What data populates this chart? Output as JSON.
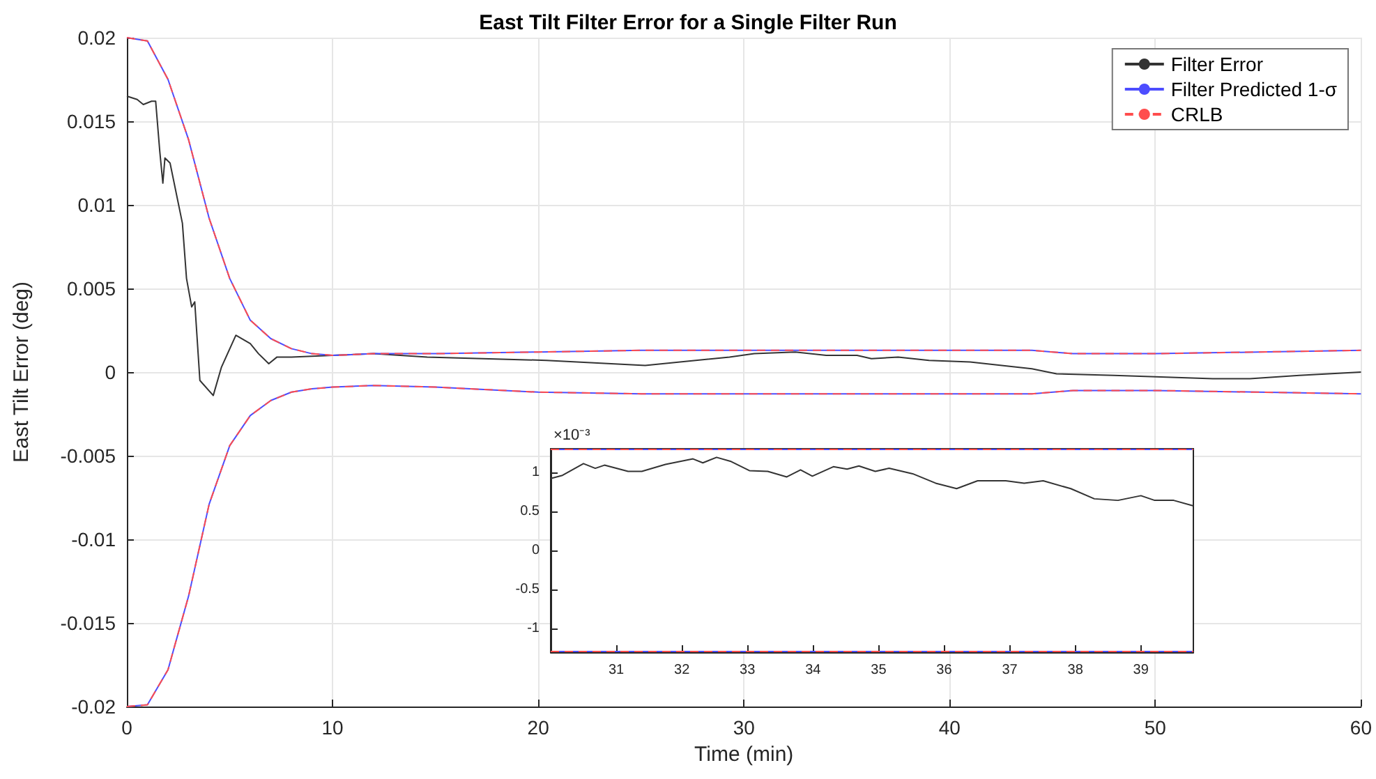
{
  "chart_data": [
    {
      "type": "line",
      "title": "East Tilt Filter Error for a Single Filter Run",
      "xlabel": "Time (min)",
      "ylabel": "East Tilt Error (deg)",
      "xlim": [
        0,
        60
      ],
      "xticks": [
        0,
        10,
        20,
        30,
        40,
        50,
        60
      ],
      "ylim": [
        -0.02,
        0.02
      ],
      "yticks": [
        -0.02,
        -0.015,
        -0.01,
        -0.005,
        0,
        0.005,
        0.01,
        0.015,
        0.02
      ],
      "grid": true,
      "legend": "top right",
      "marker": "none",
      "series": [
        {
          "name": "Filter Error",
          "color": "#333333",
          "line_style": "solid",
          "x": [
            0,
            0.5,
            0.8,
            1.2,
            1.4,
            1.6,
            1.75,
            1.85,
            2.1,
            2.7,
            2.9,
            3.15,
            3.3,
            3.55,
            4.2,
            4.6,
            5.3,
            6.0,
            6.4,
            6.9,
            7.3,
            8,
            10,
            12,
            14.6,
            20.4,
            25.2,
            29.3,
            30.5,
            32.5,
            34,
            35.5,
            36.2,
            37.5,
            39,
            41,
            44,
            45.2,
            48,
            52.8,
            54.6,
            57,
            60
          ],
          "values": [
            0.0165,
            0.0163,
            0.016,
            0.0162,
            0.0162,
            0.0132,
            0.0113,
            0.0128,
            0.0125,
            0.0089,
            0.0056,
            0.0039,
            0.0042,
            -0.0005,
            -0.0014,
            0.0003,
            0.0022,
            0.0017,
            0.0011,
            0.0005,
            0.0009,
            0.0009,
            0.001,
            0.0011,
            0.0009,
            0.0007,
            0.0004,
            0.0009,
            0.0011,
            0.0012,
            0.001,
            0.001,
            0.0008,
            0.0009,
            0.0007,
            0.0006,
            0.0002,
            -0.0001,
            -0.0002,
            -0.0004,
            -0.0004,
            -0.0002,
            0
          ]
        },
        {
          "name": "Filter Predicted 1-σ",
          "color": "#4d4dff",
          "line_style": "solid",
          "x": [
            0,
            1,
            2,
            3,
            4,
            5,
            6,
            7,
            8,
            9,
            10,
            12,
            15,
            20,
            25,
            30,
            35,
            40,
            44,
            46,
            50,
            55,
            60
          ],
          "values": [
            0.02,
            0.0198,
            0.0175,
            0.0139,
            0.0092,
            0.0056,
            0.0031,
            0.002,
            0.0014,
            0.0011,
            0.001,
            0.0011,
            0.0011,
            0.0012,
            0.0013,
            0.0013,
            0.0013,
            0.0013,
            0.0013,
            0.0011,
            0.0011,
            0.0012,
            0.0013
          ]
        },
        {
          "color": "#4d4dff",
          "line_style": "solid",
          "x": [
            0,
            1,
            2,
            3,
            4,
            5,
            6,
            7,
            8,
            9,
            10,
            12,
            15,
            20,
            25,
            30,
            35,
            40,
            44,
            46,
            50,
            55,
            60
          ],
          "values": [
            -0.02,
            -0.0199,
            -0.0178,
            -0.0134,
            -0.0079,
            -0.0044,
            -0.0026,
            -0.0017,
            -0.0012,
            -0.001,
            -0.0009,
            -0.0008,
            -0.0009,
            -0.0012,
            -0.0013,
            -0.0013,
            -0.0013,
            -0.0013,
            -0.0013,
            -0.0011,
            -0.0011,
            -0.0012,
            -0.0013
          ]
        },
        {
          "name": "CRLB",
          "color": "#ff4d4d",
          "line_style": "dashed",
          "x": [
            0,
            1,
            2,
            3,
            4,
            5,
            6,
            7,
            8,
            9,
            10,
            12,
            15,
            20,
            25,
            30,
            35,
            40,
            44,
            46,
            50,
            55,
            60
          ],
          "values": [
            0.02,
            0.0198,
            0.0175,
            0.0139,
            0.0092,
            0.0056,
            0.0031,
            0.002,
            0.0014,
            0.0011,
            0.001,
            0.0011,
            0.0011,
            0.0012,
            0.0013,
            0.0013,
            0.0013,
            0.0013,
            0.0013,
            0.0011,
            0.0011,
            0.0012,
            0.0013
          ]
        },
        {
          "color": "#ff4d4d",
          "line_style": "dashed",
          "x": [
            0,
            1,
            2,
            3,
            4,
            5,
            6,
            7,
            8,
            9,
            10,
            12,
            15,
            20,
            25,
            30,
            35,
            40,
            44,
            46,
            50,
            55,
            60
          ],
          "values": [
            -0.02,
            -0.0199,
            -0.0178,
            -0.0134,
            -0.0079,
            -0.0044,
            -0.0026,
            -0.0017,
            -0.0012,
            -0.001,
            -0.0009,
            -0.0008,
            -0.0009,
            -0.0012,
            -0.0013,
            -0.0013,
            -0.0013,
            -0.0013,
            -0.0013,
            -0.0011,
            -0.0011,
            -0.0012,
            -0.0013
          ]
        }
      ]
    },
    {
      "type": "line",
      "annotations": [
        "×10⁻³"
      ],
      "xlim": [
        30,
        39.8
      ],
      "xticks": [
        31,
        32,
        33,
        34,
        35,
        36,
        37,
        38,
        39
      ],
      "ylim": [
        -1.3,
        1.3
      ],
      "yticks": [
        -1,
        -0.5,
        0,
        0.5,
        1
      ],
      "grid": false,
      "legend": false,
      "marker": "none",
      "series": [
        {
          "color": "#333333",
          "line_style": "solid",
          "x": [
            30.0,
            30.18,
            30.5,
            30.68,
            30.82,
            31.18,
            31.39,
            31.75,
            32.17,
            32.32,
            32.53,
            32.74,
            33.03,
            33.31,
            33.6,
            33.81,
            33.99,
            34.31,
            34.52,
            34.7,
            34.95,
            35.16,
            35.52,
            35.87,
            36.19,
            36.51,
            36.94,
            37.22,
            37.51,
            37.93,
            38.29,
            38.65,
            39.0,
            39.21,
            39.5,
            39.8
          ],
          "values": [
            0.92,
            0.96,
            1.11,
            1.05,
            1.09,
            1.01,
            1.01,
            1.1,
            1.17,
            1.12,
            1.19,
            1.14,
            1.02,
            1.01,
            0.94,
            1.03,
            0.95,
            1.07,
            1.04,
            1.08,
            1.01,
            1.05,
            0.98,
            0.86,
            0.79,
            0.89,
            0.89,
            0.86,
            0.89,
            0.79,
            0.66,
            0.64,
            0.7,
            0.64,
            0.64,
            0.57
          ]
        },
        {
          "color": "#4d4dff",
          "line_style": "solid",
          "x": [
            30,
            39.8
          ],
          "values": [
            1.29,
            1.29
          ]
        },
        {
          "color": "#4d4dff",
          "line_style": "solid",
          "x": [
            30,
            39.8
          ],
          "values": [
            -1.29,
            -1.29
          ]
        },
        {
          "color": "#ff4d4d",
          "line_style": "dashed",
          "x": [
            30,
            39.8
          ],
          "values": [
            1.29,
            1.29
          ]
        },
        {
          "color": "#ff4d4d",
          "line_style": "dashed",
          "x": [
            30,
            39.8
          ],
          "values": [
            -1.29,
            -1.29
          ]
        }
      ]
    }
  ]
}
